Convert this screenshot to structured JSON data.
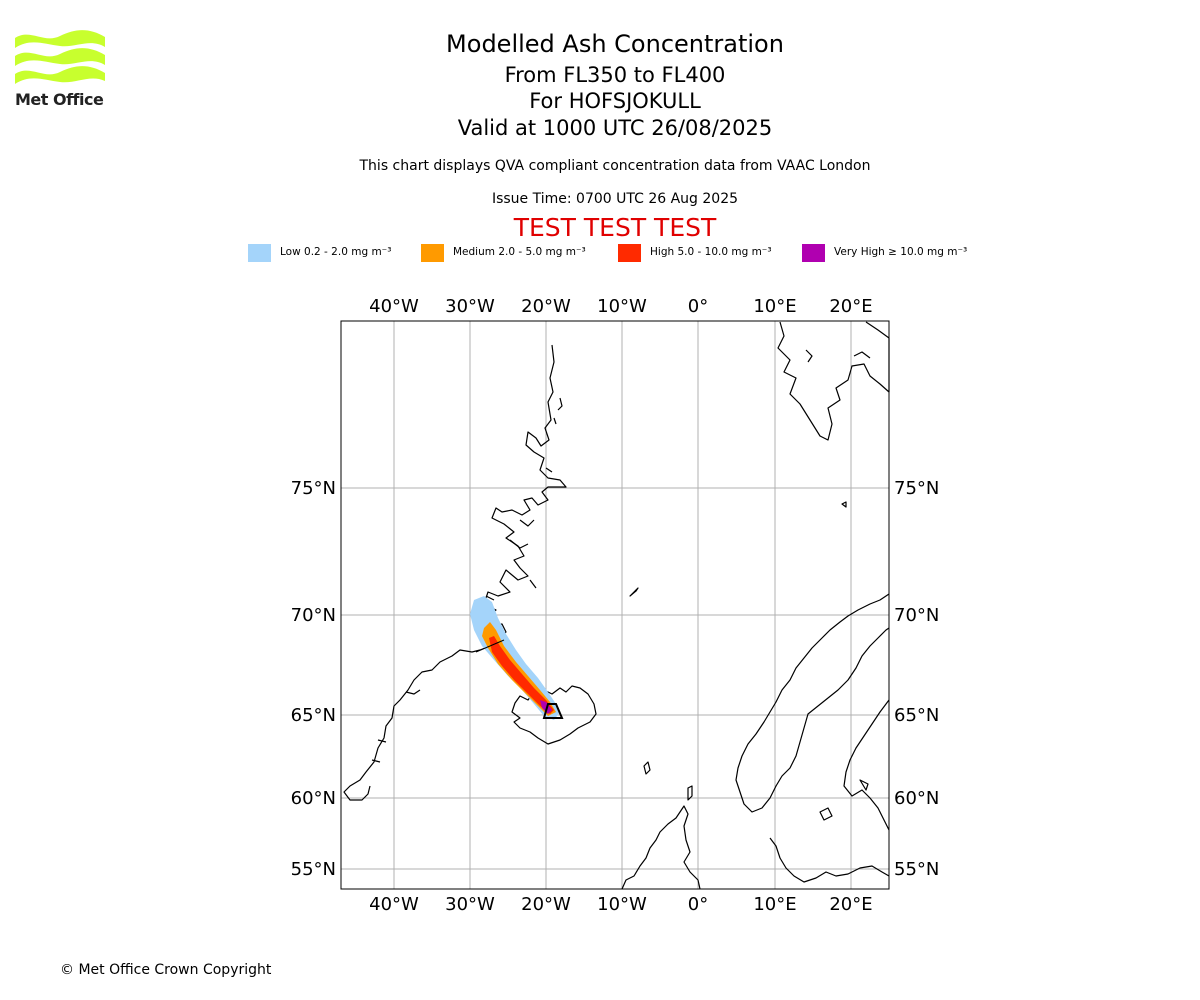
{
  "logo": {
    "text": "Met Office",
    "icon": "met-office-wave-logo",
    "color": "#c8ff2e"
  },
  "title": {
    "main": "Modelled Ash Concentration",
    "levels": "From FL350 to FL400",
    "volcano": "For HOFSJOKULL",
    "valid": "Valid at 1000 UTC 26/08/2025"
  },
  "description": "This chart displays QVA compliant concentration data from VAAC London",
  "issue_time": "Issue Time: 0700 UTC 26 Aug 2025",
  "test_banner": "TEST TEST TEST",
  "legend": [
    {
      "label": "Low 0.2 - 2.0 mg m⁻³",
      "color": "#a4d4fa"
    },
    {
      "label": "Medium 2.0 - 5.0 mg m⁻³",
      "color": "#ff9a00"
    },
    {
      "label": "High 5.0 - 10.0 mg m⁻³",
      "color": "#ff2a00"
    },
    {
      "label": "Very High ≥ 10.0 mg m⁻³",
      "color": "#b000b0"
    }
  ],
  "map": {
    "longitude_ticks": [
      "40°W",
      "30°W",
      "20°W",
      "10°W",
      "0°",
      "10°E",
      "20°E"
    ],
    "latitude_ticks": [
      "75°N",
      "70°N",
      "65°N",
      "60°N",
      "55°N"
    ],
    "grid_color": "#b0b0b0",
    "coast_color": "#000000"
  },
  "copyright": "© Met Office Crown Copyright"
}
